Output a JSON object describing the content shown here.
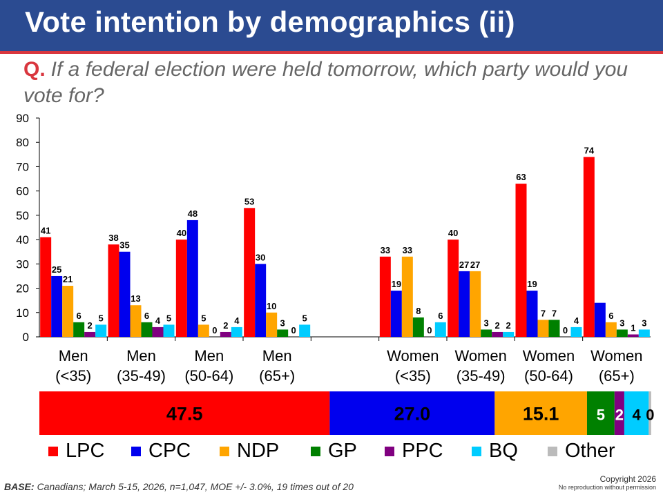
{
  "header": {
    "title": "Vote intention by demographics (ii)"
  },
  "question": {
    "label": "Q.",
    "text": "If a federal election were held tomorrow, which party would you vote for?"
  },
  "colors": {
    "LPC": "#ff0000",
    "CPC": "#0000ee",
    "NDP": "#ffa500",
    "GP": "#008000",
    "PPC": "#800080",
    "BQ": "#00ccff",
    "Other": "#bbbbbb"
  },
  "chart_data": [
    {
      "type": "bar",
      "ylim": [
        0,
        90
      ],
      "yticks": [
        0,
        10,
        20,
        30,
        40,
        50,
        60,
        70,
        80,
        90
      ],
      "categories": [
        {
          "line1": "Men",
          "line2": "(<35)"
        },
        {
          "line1": "Men",
          "line2": "(35-49)"
        },
        {
          "line1": "Men",
          "line2": "(50-64)"
        },
        {
          "line1": "Men",
          "line2": "(65+)"
        },
        {
          "line1": "",
          "line2": ""
        },
        {
          "line1": "Women",
          "line2": "(<35)"
        },
        {
          "line1": "Women",
          "line2": "(35-49)"
        },
        {
          "line1": "Women",
          "line2": "(50-64)"
        },
        {
          "line1": "Women",
          "line2": "(65+)"
        }
      ],
      "series": [
        {
          "name": "LPC",
          "values": [
            41,
            38,
            40,
            53,
            null,
            33,
            40,
            63,
            74
          ],
          "labels": [
            "41",
            "38",
            "40",
            "53",
            "",
            "33",
            "40",
            "63",
            "74"
          ]
        },
        {
          "name": "CPC",
          "values": [
            25,
            35,
            48,
            30,
            null,
            19,
            27,
            19,
            14
          ],
          "labels": [
            "25",
            "35",
            "48",
            "30",
            "",
            "19",
            "27",
            "19",
            ""
          ]
        },
        {
          "name": "NDP",
          "values": [
            21,
            13,
            5,
            10,
            null,
            33,
            27,
            7,
            6
          ],
          "labels": [
            "21",
            "13",
            "5",
            "10",
            "",
            "33",
            "27",
            "7",
            "6"
          ]
        },
        {
          "name": "GP",
          "values": [
            6,
            6,
            0,
            3,
            null,
            8,
            3,
            7,
            3
          ],
          "labels": [
            "6",
            "6",
            "0",
            "3",
            "",
            "8",
            "3",
            "7",
            "3"
          ]
        },
        {
          "name": "PPC",
          "values": [
            2,
            4,
            2,
            0,
            null,
            0,
            2,
            0,
            1
          ],
          "labels": [
            "2",
            "4",
            "2",
            "0",
            "",
            "0",
            "2",
            "0",
            "1"
          ]
        },
        {
          "name": "BQ",
          "values": [
            5,
            5,
            4,
            5,
            null,
            6,
            2,
            4,
            3
          ],
          "labels": [
            "5",
            "5",
            "4",
            "5",
            "",
            "6",
            "2",
            "4",
            "3"
          ]
        }
      ]
    },
    {
      "type": "bar",
      "orientation": "horizontal-stacked",
      "total": 100,
      "series": [
        {
          "name": "LPC",
          "value": 47.5,
          "label": "47.5"
        },
        {
          "name": "CPC",
          "value": 27.0,
          "label": "27.0"
        },
        {
          "name": "NDP",
          "value": 15.1,
          "label": "15.1"
        },
        {
          "name": "GP",
          "value": 4.5,
          "label": "5"
        },
        {
          "name": "PPC",
          "value": 1.6,
          "label": "2"
        },
        {
          "name": "BQ",
          "value": 4.0,
          "label": "4"
        },
        {
          "name": "Other",
          "value": 0.4,
          "label": "0"
        }
      ]
    }
  ],
  "legend": {
    "placement": "bottom",
    "items": [
      "LPC",
      "CPC",
      "NDP",
      "GP",
      "PPC",
      "BQ",
      "Other"
    ]
  },
  "footer": {
    "base_label": "BASE:",
    "base_text": "Canadians; March 5-15, 2026, n=1,047, MOE +/- 3.0%, 19 times out of 20",
    "copyright": "Copyright 2026",
    "copyright_sub": "No reproduction without permission"
  }
}
